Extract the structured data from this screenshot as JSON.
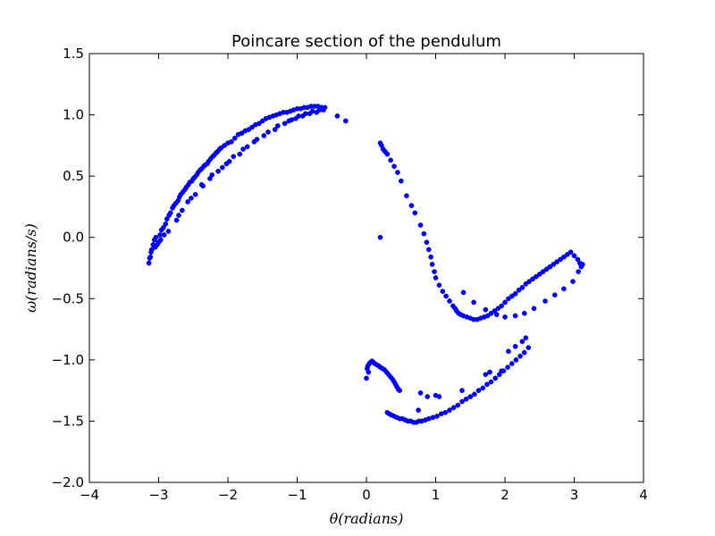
{
  "chart_data": {
    "type": "scatter",
    "title": "Poincare section of the pendulum",
    "xlabel": "θ(radians)",
    "ylabel": "ω(radians/s)",
    "xlim": [
      -4,
      4
    ],
    "ylim": [
      -2.0,
      1.5
    ],
    "xticks": [
      -4,
      -3,
      -2,
      -1,
      0,
      1,
      2,
      3,
      4
    ],
    "xtick_labels": [
      "−4",
      "−3",
      "−2",
      "−1",
      "0",
      "1",
      "2",
      "3",
      "4"
    ],
    "yticks": [
      -2.0,
      -1.5,
      -1.0,
      -0.5,
      0.0,
      0.5,
      1.0,
      1.5
    ],
    "ytick_labels": [
      "−2.0",
      "−1.5",
      "−1.0",
      "−0.5",
      "0.0",
      "0.5",
      "1.0",
      "1.5"
    ],
    "grid": false,
    "marker_color": "#0000ff",
    "series": [
      {
        "x": [
          -3.14,
          -3.12,
          -3.1,
          -3.08,
          -3.06,
          -3.04,
          -3.02,
          -3.0,
          -2.98,
          -2.96,
          -2.93,
          -2.9,
          -2.88,
          -2.85,
          -2.83,
          -2.8,
          -2.78,
          -2.75,
          -2.72,
          -2.7,
          -2.68,
          -2.65,
          -2.62,
          -2.6,
          -2.57,
          -2.55,
          -2.52,
          -2.5,
          -2.48,
          -2.45,
          -2.43,
          -2.4,
          -2.38,
          -2.35,
          -2.33,
          -2.3,
          -2.28,
          -2.25,
          -2.22,
          -2.2,
          -2.17,
          -2.15,
          -2.12,
          -2.1,
          -2.05,
          -2.0,
          -1.95,
          -1.9,
          -1.85,
          -1.8,
          -1.75,
          -1.7,
          -1.65,
          -1.6,
          -1.55,
          -1.5,
          -1.45,
          -1.4,
          -1.35,
          -1.3,
          -1.25,
          -1.2,
          -1.15,
          -1.1,
          -1.05,
          -1.0,
          -0.95,
          -0.9,
          -0.85,
          -0.8,
          -0.75,
          -0.7,
          -0.65,
          -0.6,
          -0.42,
          -0.3,
          -3.13,
          -3.05,
          -2.97,
          -2.86,
          -2.74,
          -2.66,
          -2.58,
          -2.47,
          -2.36,
          -2.26,
          -2.14,
          -2.02,
          -1.92,
          -1.78,
          -1.62,
          -1.48,
          -1.32,
          -1.18,
          -1.08,
          -0.98,
          -0.88,
          -0.78,
          -0.68,
          -3.11,
          -2.92,
          -2.71,
          -2.53,
          -2.38,
          -2.23,
          -2.08,
          -1.98,
          -1.83,
          -1.72,
          -1.58,
          -1.42,
          -1.28,
          -1.12,
          -1.02,
          -0.92,
          -0.82,
          -0.72,
          -0.62
        ],
        "y": [
          -0.21,
          -0.16,
          -0.1,
          -0.06,
          -0.02,
          0.0,
          -0.06,
          -0.04,
          0.02,
          0.06,
          0.08,
          0.11,
          0.15,
          0.18,
          0.2,
          0.24,
          0.26,
          0.28,
          0.3,
          0.33,
          0.35,
          0.37,
          0.39,
          0.41,
          0.43,
          0.45,
          0.46,
          0.48,
          0.49,
          0.51,
          0.53,
          0.55,
          0.56,
          0.58,
          0.59,
          0.6,
          0.62,
          0.64,
          0.66,
          0.67,
          0.69,
          0.7,
          0.72,
          0.73,
          0.75,
          0.77,
          0.78,
          0.81,
          0.84,
          0.85,
          0.87,
          0.88,
          0.9,
          0.92,
          0.93,
          0.95,
          0.97,
          0.98,
          0.99,
          1.0,
          1.01,
          1.02,
          1.02,
          1.03,
          1.04,
          1.05,
          1.05,
          1.06,
          1.06,
          1.07,
          1.07,
          1.07,
          1.06,
          1.06,
          0.99,
          0.95,
          -0.17,
          -0.08,
          -0.02,
          0.05,
          0.14,
          0.22,
          0.29,
          0.35,
          0.42,
          0.48,
          0.54,
          0.6,
          0.66,
          0.72,
          0.78,
          0.83,
          0.88,
          0.93,
          0.96,
          0.99,
          1.01,
          1.03,
          1.04,
          -0.12,
          0.02,
          0.18,
          0.32,
          0.43,
          0.51,
          0.57,
          0.62,
          0.68,
          0.74,
          0.8,
          0.86,
          0.91,
          0.95,
          0.97,
          0.99,
          1.01,
          1.02,
          1.04
        ]
      },
      {
        "x": [
          0.2,
          0.22,
          0.24,
          0.27,
          0.3,
          0.35,
          0.4,
          0.45,
          0.5,
          0.58,
          0.65,
          0.7,
          0.78,
          0.83,
          0.87,
          0.9,
          0.93,
          0.95,
          0.98,
          1.0,
          1.05,
          1.1,
          1.15,
          1.2,
          1.25,
          1.28,
          1.3,
          1.33,
          1.36,
          1.4,
          1.45,
          1.5,
          1.55,
          1.6,
          1.65,
          1.7,
          1.75,
          1.8,
          1.85,
          1.9,
          1.95,
          2.0,
          2.05,
          2.1,
          2.15,
          2.2,
          2.25,
          2.3,
          2.35,
          2.4,
          2.45,
          2.5,
          2.55,
          2.6,
          2.65,
          2.7,
          2.75,
          2.8,
          2.85,
          2.9,
          2.95,
          3.0,
          3.05,
          3.08,
          3.1,
          3.12,
          0.2,
          1.4,
          1.55,
          1.72,
          1.88,
          2.0,
          2.15,
          2.28,
          2.42,
          2.58,
          2.72,
          2.85,
          2.98,
          3.06
        ],
        "y": [
          0.77,
          0.75,
          0.72,
          0.7,
          0.68,
          0.63,
          0.58,
          0.53,
          0.46,
          0.34,
          0.26,
          0.2,
          0.1,
          0.03,
          -0.04,
          -0.1,
          -0.16,
          -0.22,
          -0.28,
          -0.33,
          -0.39,
          -0.44,
          -0.48,
          -0.52,
          -0.56,
          -0.58,
          -0.6,
          -0.62,
          -0.63,
          -0.64,
          -0.65,
          -0.66,
          -0.67,
          -0.67,
          -0.66,
          -0.65,
          -0.64,
          -0.62,
          -0.6,
          -0.58,
          -0.56,
          -0.53,
          -0.5,
          -0.48,
          -0.46,
          -0.43,
          -0.41,
          -0.38,
          -0.36,
          -0.34,
          -0.32,
          -0.3,
          -0.28,
          -0.26,
          -0.24,
          -0.22,
          -0.2,
          -0.18,
          -0.16,
          -0.14,
          -0.12,
          -0.15,
          -0.18,
          -0.21,
          -0.24,
          -0.22,
          0.0,
          -0.45,
          -0.53,
          -0.59,
          -0.63,
          -0.65,
          -0.64,
          -0.62,
          -0.58,
          -0.52,
          -0.47,
          -0.42,
          -0.36,
          -0.28
        ]
      },
      {
        "x": [
          0.0,
          0.01,
          0.02,
          0.04,
          0.06,
          0.08,
          0.1,
          0.12,
          0.15,
          0.18,
          0.2,
          0.23,
          0.26,
          0.29,
          0.32,
          0.35,
          0.38,
          0.4,
          0.42,
          0.44,
          0.46,
          0.48,
          0.3,
          0.33,
          0.36,
          0.4,
          0.44,
          0.48,
          0.52,
          0.56,
          0.6,
          0.64,
          0.68,
          0.72,
          0.76,
          0.8,
          0.85,
          0.9,
          0.96,
          1.02,
          1.08,
          1.14,
          1.2,
          1.26,
          1.32,
          1.38,
          1.44,
          1.5,
          1.56,
          1.62,
          1.68,
          1.74,
          1.8,
          1.86,
          1.92,
          1.98,
          2.04,
          2.1,
          2.16,
          2.22,
          2.28,
          2.34,
          0.03,
          0.75,
          0.78,
          0.88,
          1.0,
          1.05,
          1.38,
          1.72,
          1.78,
          1.95,
          2.05,
          2.15,
          2.25,
          2.3
        ],
        "y": [
          -1.15,
          -1.07,
          -1.05,
          -1.03,
          -1.02,
          -1.01,
          -1.02,
          -1.03,
          -1.04,
          -1.05,
          -1.06,
          -1.07,
          -1.08,
          -1.1,
          -1.12,
          -1.14,
          -1.16,
          -1.18,
          -1.2,
          -1.22,
          -1.24,
          -1.25,
          -1.43,
          -1.44,
          -1.45,
          -1.46,
          -1.47,
          -1.48,
          -1.48,
          -1.49,
          -1.5,
          -1.5,
          -1.51,
          -1.51,
          -1.5,
          -1.5,
          -1.49,
          -1.48,
          -1.47,
          -1.46,
          -1.44,
          -1.43,
          -1.41,
          -1.39,
          -1.37,
          -1.34,
          -1.32,
          -1.3,
          -1.28,
          -1.25,
          -1.23,
          -1.2,
          -1.18,
          -1.15,
          -1.12,
          -1.09,
          -1.06,
          -1.03,
          -1.0,
          -0.97,
          -0.94,
          -0.9,
          -1.1,
          -1.41,
          -1.27,
          -1.3,
          -1.29,
          -1.3,
          -1.25,
          -1.12,
          -1.1,
          -1.09,
          -0.93,
          -0.89,
          -0.85,
          -0.82
        ]
      }
    ]
  }
}
